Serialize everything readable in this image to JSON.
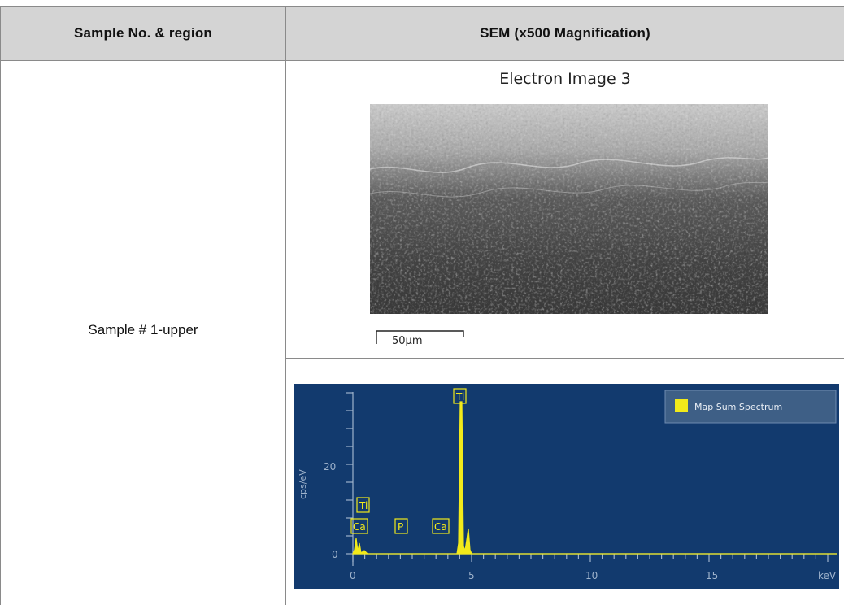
{
  "header": {
    "col1": "Sample No. & region",
    "col2": "SEM (x500 Magnification)"
  },
  "row": {
    "sample_label": "Sample # 1-upper",
    "sem_title": "Electron Image 3",
    "scale_bar_label": "50μm"
  },
  "spectrum": {
    "legend": "Map Sum Spectrum",
    "y_axis_label": "cps/eV",
    "y_tick": "20",
    "y_tick_zero": "0",
    "x_ticks": [
      "0",
      "5",
      "10",
      "15"
    ],
    "x_unit": "keV",
    "peak_labels": [
      "Ti",
      "Ti",
      "Ca",
      "P",
      "Ca"
    ],
    "colors": {
      "background": "#123a6e",
      "trace": "#f2ea1a"
    }
  }
}
